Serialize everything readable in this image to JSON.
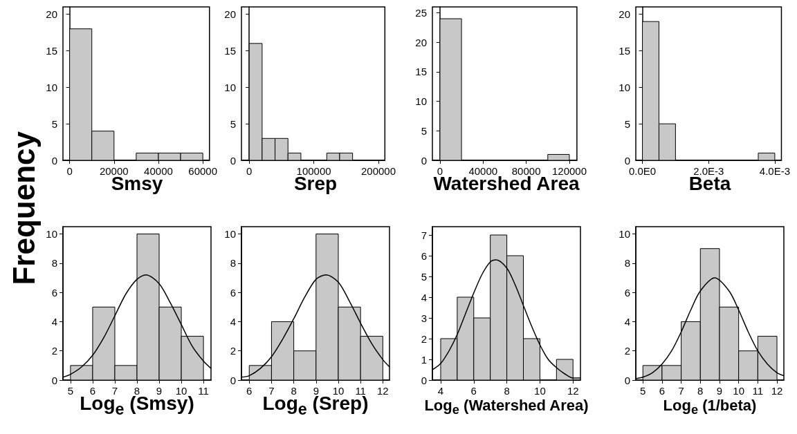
{
  "chart_data": [
    {
      "type": "histogram",
      "xlabel": "Smsy",
      "ylabel": "Frequency",
      "bins": [
        0,
        10000,
        20000,
        30000,
        40000,
        50000,
        60000
      ],
      "values": [
        18,
        4,
        0,
        1,
        1,
        1
      ],
      "color": "#c8c8c8",
      "xlim": [
        -3000,
        63000
      ],
      "xticks": [
        0,
        20000,
        40000,
        60000
      ],
      "ylim": [
        0,
        21
      ],
      "yticks": [
        0,
        5,
        10,
        15,
        20
      ]
    },
    {
      "type": "histogram",
      "xlabel": "Srep",
      "bins": [
        0,
        20000,
        40000,
        60000,
        80000,
        100000,
        120000,
        140000,
        160000
      ],
      "values": [
        16,
        3,
        3,
        1,
        0,
        0,
        1,
        1
      ],
      "color": "#c8c8c8",
      "xlim": [
        -12000,
        210000
      ],
      "xticks": [
        0,
        100000,
        200000
      ],
      "ylim": [
        0,
        21
      ],
      "yticks": [
        0,
        5,
        10,
        15,
        20
      ]
    },
    {
      "type": "histogram",
      "xlabel": "Watershed Area",
      "bins": [
        0,
        20000,
        40000,
        60000,
        80000,
        100000,
        120000
      ],
      "values": [
        24,
        0,
        0,
        0,
        0,
        1
      ],
      "color": "#c8c8c8",
      "xlim": [
        -7000,
        127000
      ],
      "xticks": [
        0,
        40000,
        80000,
        120000
      ],
      "ylim": [
        0,
        26
      ],
      "yticks": [
        0,
        5,
        10,
        15,
        20,
        25
      ]
    },
    {
      "type": "histogram",
      "xlabel": "Beta",
      "bins": [
        0,
        0.0005,
        0.001,
        0.0015,
        0.002,
        0.0025,
        0.003,
        0.0035,
        0.004
      ],
      "values": [
        19,
        5,
        0,
        0,
        0,
        0,
        0,
        1
      ],
      "color": "#c8c8c8",
      "xlim": [
        -0.0002,
        0.0042
      ],
      "xticks": [
        {
          "value": 0,
          "label": "0.0E0"
        },
        {
          "value": 0.002,
          "label": "2.0E-3"
        },
        {
          "value": 0.004,
          "label": "4.0E-3"
        }
      ],
      "ylim": [
        0,
        21
      ],
      "yticks": [
        0,
        5,
        10,
        15,
        20
      ]
    },
    {
      "type": "histogram",
      "xlabel": "Log$_{e}$ (Smsy)",
      "bins": [
        5,
        6,
        7,
        8,
        9,
        10,
        11
      ],
      "values": [
        1,
        5,
        1,
        10,
        5,
        3
      ],
      "color": "#c8c8c8",
      "xlim": [
        4.66,
        11.34
      ],
      "xticks": [
        5,
        6,
        7,
        8,
        9,
        10,
        11
      ],
      "ylim": [
        0,
        10.5
      ],
      "yticks": [
        0,
        2,
        4,
        6,
        8,
        10
      ],
      "series": [
        {
          "type": "line",
          "color": "#000000",
          "x": [
            4.66,
            5,
            5.5,
            6,
            6.5,
            7,
            7.5,
            8,
            8.4,
            9,
            9.5,
            10,
            10.5,
            11,
            11.34
          ],
          "values": [
            0.2,
            0.4,
            0.9,
            1.7,
            2.9,
            4.4,
            5.9,
            6.9,
            7.2,
            6.6,
            5.3,
            3.8,
            2.3,
            1.3,
            0.8
          ]
        }
      ]
    },
    {
      "type": "histogram",
      "xlabel": "Log$_{e}$ (Srep)",
      "bins": [
        6,
        7,
        8,
        9,
        10,
        11,
        12
      ],
      "values": [
        1,
        4,
        2,
        10,
        5,
        3
      ],
      "color": "#c8c8c8",
      "xlim": [
        5.65,
        12.3
      ],
      "xticks": [
        6,
        7,
        8,
        9,
        10,
        11,
        12
      ],
      "ylim": [
        0,
        10.5
      ],
      "yticks": [
        0,
        2,
        4,
        6,
        8,
        10
      ],
      "series": [
        {
          "type": "line",
          "color": "#000000",
          "x": [
            5.65,
            6,
            6.5,
            7,
            7.5,
            8,
            8.5,
            9,
            9.45,
            10,
            10.5,
            11,
            11.5,
            12,
            12.3
          ],
          "values": [
            0.2,
            0.3,
            0.8,
            1.6,
            2.8,
            4.2,
            5.7,
            6.9,
            7.2,
            6.7,
            5.4,
            3.9,
            2.5,
            1.4,
            0.9
          ]
        }
      ]
    },
    {
      "type": "histogram",
      "xlabel": "Log$_{e}$ (Watershed Area)",
      "bins": [
        4,
        5,
        6,
        7,
        8,
        9,
        10,
        11,
        12
      ],
      "values": [
        2,
        4,
        3,
        7,
        6,
        2,
        0,
        1
      ],
      "color": "#c8c8c8",
      "xlim": [
        3.5,
        12.45
      ],
      "xticks": [
        4,
        6,
        8,
        10,
        12
      ],
      "ylim": [
        0,
        7.4
      ],
      "yticks": [
        0,
        1,
        2,
        3,
        4,
        5,
        6,
        7
      ],
      "series": [
        {
          "type": "line",
          "color": "#000000",
          "x": [
            3.5,
            4,
            4.5,
            5,
            5.5,
            6,
            6.5,
            7,
            7.35,
            8,
            8.5,
            9,
            9.5,
            10,
            10.5,
            11,
            11.5,
            12,
            12.45
          ],
          "values": [
            0.5,
            0.8,
            1.4,
            2.2,
            3.2,
            4.2,
            5.1,
            5.7,
            5.8,
            5.4,
            4.6,
            3.6,
            2.6,
            1.7,
            1.0,
            0.6,
            0.3,
            0.1,
            0.1
          ]
        }
      ]
    },
    {
      "type": "histogram",
      "xlabel": "Log$_{e}$ (1/beta)",
      "bins": [
        5,
        6,
        7,
        8,
        9,
        10,
        11,
        12
      ],
      "values": [
        1,
        1,
        4,
        9,
        5,
        2,
        3
      ],
      "color": "#c8c8c8",
      "xlim": [
        4.63,
        12.36
      ],
      "xticks": [
        5,
        6,
        7,
        8,
        9,
        10,
        11,
        12
      ],
      "ylim": [
        0,
        10.5
      ],
      "yticks": [
        0,
        2,
        4,
        6,
        8,
        10
      ],
      "series": [
        {
          "type": "line",
          "color": "#000000",
          "x": [
            4.63,
            5,
            5.5,
            6,
            6.5,
            7,
            7.5,
            8,
            8.75,
            9.5,
            10,
            10.5,
            11,
            11.5,
            12,
            12.36
          ],
          "values": [
            0.1,
            0.2,
            0.5,
            1.1,
            2.0,
            3.3,
            4.8,
            6.1,
            7.0,
            6.1,
            4.8,
            3.3,
            2.0,
            1.1,
            0.5,
            0.3
          ]
        }
      ]
    }
  ]
}
